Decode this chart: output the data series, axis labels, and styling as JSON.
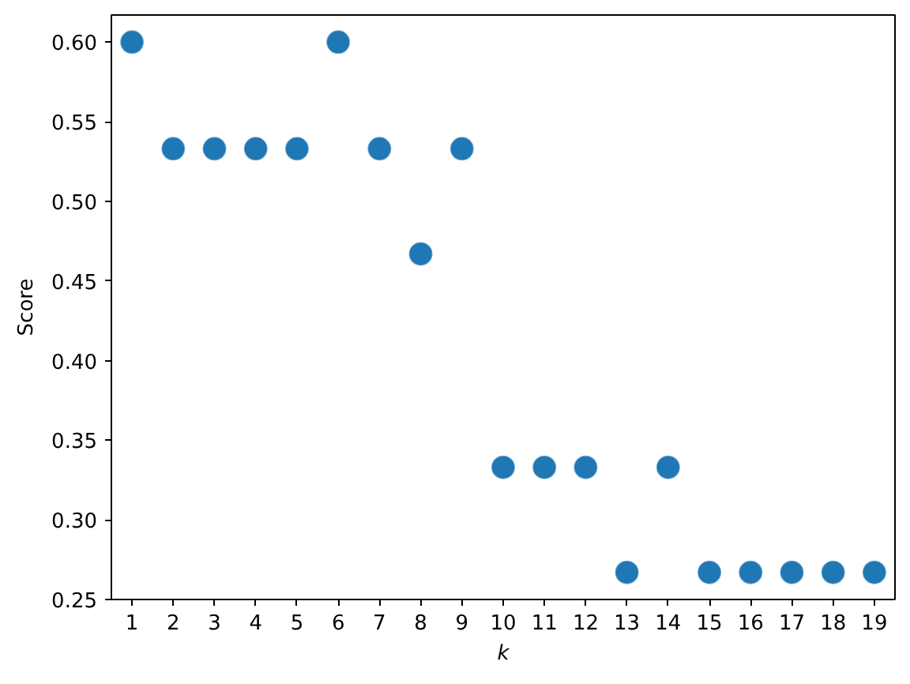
{
  "chart_data": {
    "type": "scatter",
    "xlabel": "k",
    "ylabel": "Score",
    "marker": "circle",
    "x": [
      1,
      2,
      3,
      4,
      5,
      6,
      7,
      8,
      9,
      10,
      11,
      12,
      13,
      14,
      15,
      16,
      17,
      18,
      19
    ],
    "series": [
      {
        "color": "#1f77b4",
        "values": [
          0.6,
          0.533,
          0.533,
          0.533,
          0.533,
          0.6,
          0.533,
          0.467,
          0.533,
          0.333,
          0.333,
          0.333,
          0.267,
          0.333,
          0.267,
          0.267,
          0.267,
          0.267,
          0.267
        ]
      }
    ],
    "xlim": [
      0.5,
      19.5
    ],
    "ylim": [
      0.25,
      0.617
    ],
    "xticks": [
      1,
      2,
      3,
      4,
      5,
      6,
      7,
      8,
      9,
      10,
      11,
      12,
      13,
      14,
      15,
      16,
      17,
      18,
      19
    ],
    "yticks": [
      0.25,
      {
        "value": 0.3,
        "label": "0.30"
      },
      0.35,
      {
        "value": 0.4,
        "label": "0.40"
      },
      0.45,
      {
        "value": 0.5,
        "label": "0.50"
      },
      0.55,
      {
        "value": 0.6,
        "label": "0.60"
      }
    ]
  }
}
